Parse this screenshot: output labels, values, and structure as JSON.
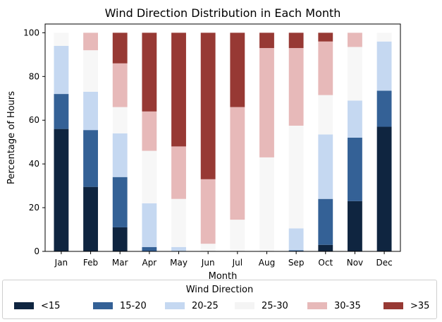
{
  "chart_data": {
    "type": "bar",
    "stacked": true,
    "title": "Wind Direction Distribution in Each Month",
    "xlabel": "Month",
    "ylabel": "Percentage of Hours",
    "ylim": [
      0,
      104
    ],
    "yticks": [
      0,
      20,
      40,
      60,
      80,
      100
    ],
    "categories": [
      "Jan",
      "Feb",
      "Mar",
      "Apr",
      "May",
      "Jun",
      "Jul",
      "Aug",
      "Sep",
      "Oct",
      "Nov",
      "Dec"
    ],
    "legend_title": "Wind Direction",
    "legend_position": "bottom",
    "grid": false,
    "series": [
      {
        "name": "<15",
        "color": "#0f2540",
        "values": [
          56,
          29.5,
          11,
          0,
          0,
          0,
          0,
          0,
          0,
          3,
          23,
          57
        ]
      },
      {
        "name": "15-20",
        "color": "#346196",
        "values": [
          16,
          26,
          23,
          2,
          0,
          0,
          0,
          0,
          0.5,
          21,
          29,
          16.5
        ]
      },
      {
        "name": "20-25",
        "color": "#c5d8f1",
        "values": [
          22,
          17.5,
          20,
          20,
          2,
          0,
          0,
          0,
          10,
          29.5,
          17,
          22.5
        ]
      },
      {
        "name": "25-30",
        "color": "#f7f7f7",
        "values": [
          6,
          19,
          12,
          24,
          22,
          3.5,
          14.5,
          43,
          47,
          18,
          24.5,
          4
        ]
      },
      {
        "name": "30-35",
        "color": "#e7b9b9",
        "values": [
          0,
          8,
          20,
          18,
          24,
          29.5,
          51.5,
          50,
          35.5,
          24.5,
          6.5,
          0
        ]
      },
      {
        "name": ">35",
        "color": "#973934",
        "values": [
          0,
          0,
          14,
          36,
          52,
          67,
          34,
          7,
          7,
          4,
          0,
          0
        ]
      }
    ]
  }
}
